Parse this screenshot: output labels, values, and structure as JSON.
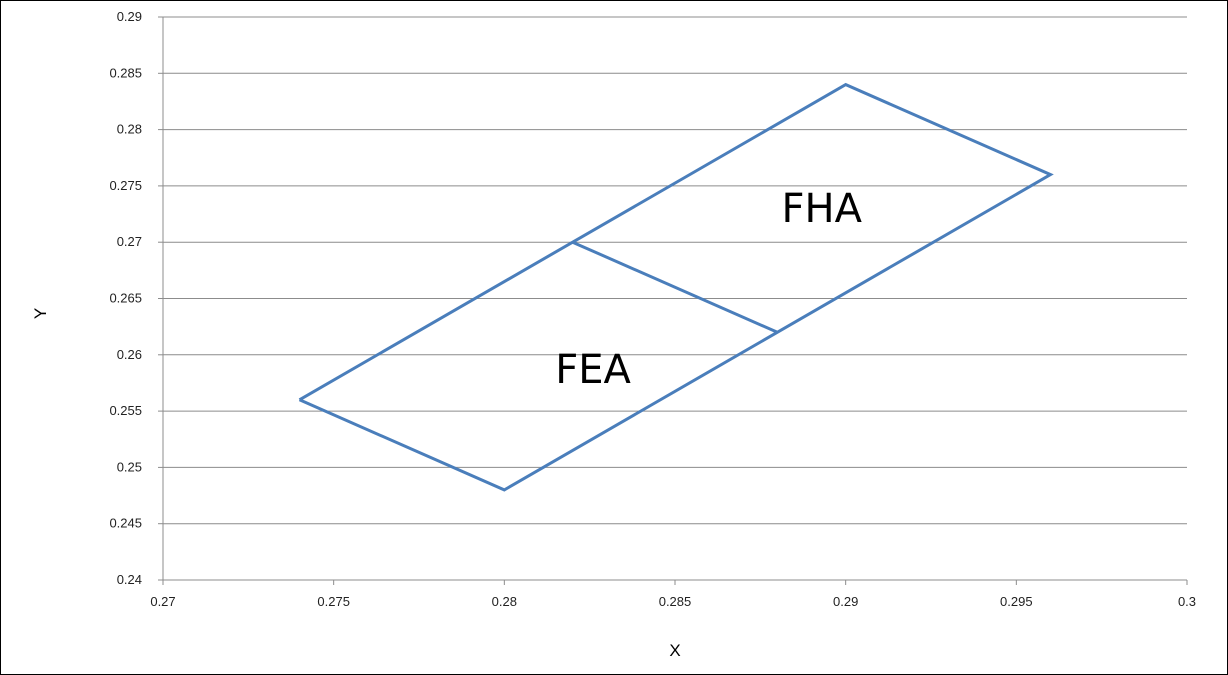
{
  "chart_data": {
    "type": "line",
    "title": "",
    "xlabel": "X",
    "ylabel": "Y",
    "xlim": [
      0.27,
      0.3
    ],
    "ylim": [
      0.24,
      0.29
    ],
    "xticks": [
      "0.27",
      "0.275",
      "0.28",
      "0.285",
      "0.29",
      "0.295",
      "0.3"
    ],
    "yticks": [
      "0.24",
      "0.245",
      "0.25",
      "0.255",
      "0.26",
      "0.265",
      "0.27",
      "0.275",
      "0.28",
      "0.285",
      "0.29"
    ],
    "grid": "horizontal",
    "legend": "none",
    "line_color": "#4a7ebb",
    "series": [
      {
        "x": [
          0.274,
          0.28,
          0.296,
          0.29,
          0.274
        ],
        "y": [
          0.256,
          0.248,
          0.276,
          0.284,
          0.256
        ]
      },
      {
        "x": [
          0.282,
          0.288
        ],
        "y": [
          0.27,
          0.262
        ]
      }
    ],
    "annotations": [
      {
        "text": "FHA",
        "x": 0.2893,
        "y": 0.2718
      },
      {
        "text": "FEA",
        "x": 0.2826,
        "y": 0.2575
      }
    ]
  }
}
